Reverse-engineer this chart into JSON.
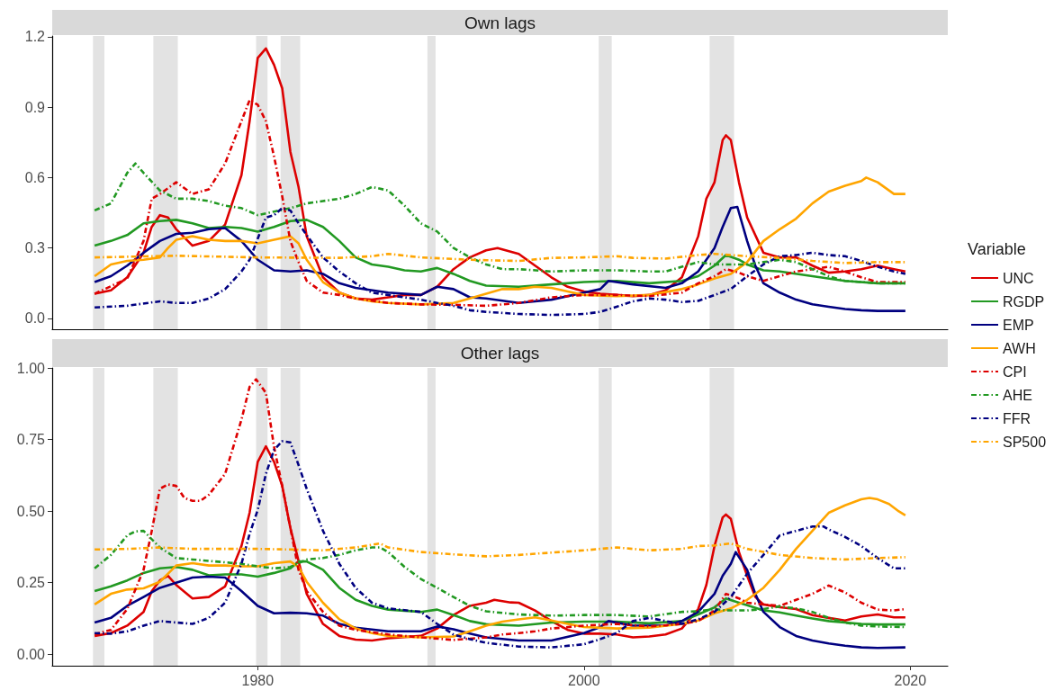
{
  "chart_data": [
    {
      "type": "line",
      "title": "Own lags",
      "legend": "right",
      "legend_title": "Variable",
      "marker": "none",
      "grid": false,
      "tick_labels": "y",
      "xlim": [
        1967.4,
        2022.3
      ],
      "xticks": [
        1980,
        2000,
        2020
      ],
      "ylim": [
        -0.046,
        1.203
      ],
      "yticks": [
        {
          "value": 0,
          "label": "0.0"
        },
        0.3,
        0.6,
        0.9,
        1.2
      ],
      "bands": [
        {
          "axis": "x",
          "from": 1969.9,
          "to": 1970.6,
          "color": "#e3e3e3"
        },
        {
          "axis": "x",
          "from": 1973.6,
          "to": 1975.1,
          "color": "#e3e3e3"
        },
        {
          "axis": "x",
          "from": 1979.9,
          "to": 1980.6,
          "color": "#e3e3e3"
        },
        {
          "axis": "x",
          "from": 1981.4,
          "to": 1982.6,
          "color": "#e3e3e3"
        },
        {
          "axis": "x",
          "from": 1990.4,
          "to": 1990.9,
          "color": "#e3e3e3"
        },
        {
          "axis": "x",
          "from": 2000.9,
          "to": 2001.7,
          "color": "#e3e3e3"
        },
        {
          "axis": "x",
          "from": 2007.7,
          "to": 2009.2,
          "color": "#e3e3e3"
        }
      ],
      "series": [
        {
          "name": "UNC",
          "color": "#dd0000",
          "line_style": "solid",
          "x": [
            1970,
            1971,
            1972,
            1973,
            1973.5,
            1974,
            1974.5,
            1975,
            1976,
            1977,
            1978,
            1979,
            1979.5,
            1980,
            1980.5,
            1981,
            1981.5,
            1982,
            1982.5,
            1983,
            1984,
            1985,
            1986,
            1987,
            1988,
            1989,
            1990,
            1991,
            1992,
            1993,
            1994,
            1994.7,
            1996,
            1997,
            1998,
            1999,
            2000,
            2001,
            2002,
            2003,
            2004,
            2005,
            2006,
            2007,
            2007.5,
            2008,
            2008.5,
            2008.7,
            2009,
            2009.5,
            2010,
            2011,
            2012,
            2013,
            2014,
            2015,
            2016,
            2017,
            2018,
            2019,
            2019.7
          ],
          "values": [
            0.105,
            0.12,
            0.175,
            0.28,
            0.39,
            0.44,
            0.43,
            0.38,
            0.31,
            0.33,
            0.4,
            0.61,
            0.84,
            1.11,
            1.15,
            1.08,
            0.98,
            0.71,
            0.56,
            0.35,
            0.175,
            0.11,
            0.085,
            0.08,
            0.09,
            0.1,
            0.1,
            0.135,
            0.21,
            0.26,
            0.29,
            0.3,
            0.275,
            0.225,
            0.175,
            0.135,
            0.115,
            0.105,
            0.1,
            0.095,
            0.1,
            0.12,
            0.175,
            0.35,
            0.51,
            0.58,
            0.76,
            0.78,
            0.76,
            0.58,
            0.43,
            0.28,
            0.26,
            0.26,
            0.225,
            0.195,
            0.2,
            0.21,
            0.225,
            0.21,
            0.2
          ]
        },
        {
          "name": "RGDP",
          "color": "#229922",
          "line_style": "solid",
          "x": [
            1970,
            1971,
            1972,
            1973,
            1974,
            1975,
            1976,
            1977,
            1978,
            1979,
            1980,
            1981,
            1982,
            1983,
            1984,
            1985,
            1986,
            1987,
            1988,
            1989,
            1990,
            1991,
            1992,
            1993,
            1994,
            1996,
            1998,
            2000,
            2002,
            2004,
            2006,
            2007,
            2008,
            2008.7,
            2009.5,
            2010,
            2011,
            2012,
            2014,
            2016,
            2018,
            2019.7
          ],
          "values": [
            0.31,
            0.33,
            0.355,
            0.405,
            0.415,
            0.42,
            0.405,
            0.385,
            0.39,
            0.385,
            0.37,
            0.39,
            0.415,
            0.42,
            0.39,
            0.33,
            0.26,
            0.23,
            0.22,
            0.205,
            0.2,
            0.215,
            0.19,
            0.16,
            0.14,
            0.135,
            0.145,
            0.155,
            0.16,
            0.15,
            0.16,
            0.18,
            0.225,
            0.27,
            0.25,
            0.23,
            0.205,
            0.2,
            0.18,
            0.16,
            0.15,
            0.15
          ]
        },
        {
          "name": "EMP",
          "color": "#000080",
          "line_style": "solid",
          "x": [
            1970,
            1971,
            1972,
            1973,
            1974,
            1975,
            1976,
            1977,
            1978,
            1979,
            1980,
            1981,
            1982,
            1983,
            1984,
            1985,
            1986,
            1988,
            1990,
            1991,
            1992,
            1993,
            1994,
            1996,
            1998,
            2000,
            2001,
            2001.5,
            2003,
            2005,
            2006,
            2007,
            2008,
            2008.5,
            2009,
            2009.4,
            2010,
            2010.5,
            2011,
            2012,
            2013,
            2014,
            2015,
            2016,
            2017,
            2018,
            2019.7
          ],
          "values": [
            0.155,
            0.18,
            0.225,
            0.28,
            0.33,
            0.36,
            0.365,
            0.38,
            0.385,
            0.33,
            0.25,
            0.205,
            0.2,
            0.205,
            0.19,
            0.15,
            0.13,
            0.11,
            0.1,
            0.135,
            0.125,
            0.09,
            0.085,
            0.066,
            0.08,
            0.11,
            0.125,
            0.16,
            0.145,
            0.13,
            0.15,
            0.2,
            0.3,
            0.39,
            0.47,
            0.475,
            0.33,
            0.225,
            0.15,
            0.11,
            0.08,
            0.06,
            0.05,
            0.04,
            0.035,
            0.032,
            0.032
          ]
        },
        {
          "name": "AWH",
          "color": "#ffa500",
          "line_style": "solid",
          "x": [
            1970,
            1971,
            1972,
            1973,
            1974,
            1974.5,
            1975,
            1976,
            1977,
            1978,
            1979,
            1980,
            1981,
            1982,
            1982.5,
            1983,
            1984,
            1985,
            1986,
            1987,
            1988,
            1990,
            1992,
            1993,
            1994,
            1995,
            1996,
            1997,
            1998,
            1999,
            2000,
            2002,
            2004,
            2006,
            2007,
            2008,
            2009,
            2010,
            2011,
            2012,
            2013,
            2014,
            2015,
            2016,
            2017,
            2017.3,
            2018,
            2019,
            2019.7
          ],
          "values": [
            0.18,
            0.23,
            0.245,
            0.25,
            0.26,
            0.3,
            0.335,
            0.35,
            0.335,
            0.33,
            0.33,
            0.32,
            0.335,
            0.35,
            0.32,
            0.25,
            0.155,
            0.11,
            0.085,
            0.073,
            0.066,
            0.06,
            0.066,
            0.085,
            0.105,
            0.125,
            0.125,
            0.135,
            0.13,
            0.115,
            0.1,
            0.095,
            0.1,
            0.125,
            0.145,
            0.17,
            0.19,
            0.24,
            0.33,
            0.38,
            0.425,
            0.49,
            0.54,
            0.565,
            0.585,
            0.6,
            0.58,
            0.53,
            0.53
          ]
        },
        {
          "name": "CPI",
          "color": "#dd0000",
          "line_style": "dashed",
          "x": [
            1970,
            1972,
            1973,
            1973.5,
            1974,
            1975,
            1976,
            1977,
            1978,
            1979,
            1979.5,
            1980,
            1980.5,
            1981,
            1981.5,
            1982,
            1982.5,
            1983,
            1984,
            1985,
            1986,
            1988,
            1990,
            1992,
            1994,
            1996,
            1998,
            2000,
            2002,
            2004,
            2006,
            2007,
            2008,
            2008.7,
            2009.5,
            2010,
            2011,
            2012,
            2013,
            2014,
            2015,
            2016,
            2017,
            2018,
            2019.7
          ],
          "values": [
            0.105,
            0.17,
            0.33,
            0.51,
            0.53,
            0.58,
            0.53,
            0.55,
            0.66,
            0.84,
            0.93,
            0.91,
            0.84,
            0.69,
            0.52,
            0.33,
            0.24,
            0.16,
            0.11,
            0.1,
            0.085,
            0.066,
            0.06,
            0.058,
            0.054,
            0.066,
            0.09,
            0.1,
            0.1,
            0.095,
            0.11,
            0.15,
            0.18,
            0.21,
            0.195,
            0.18,
            0.16,
            0.18,
            0.2,
            0.21,
            0.22,
            0.2,
            0.175,
            0.155,
            0.155
          ]
        },
        {
          "name": "AHE",
          "color": "#229922",
          "line_style": "dashed",
          "x": [
            1970,
            1971,
            1972,
            1972.5,
            1973,
            1974,
            1975,
            1976,
            1977,
            1978,
            1979,
            1979.5,
            1980,
            1981,
            1982,
            1983,
            1984,
            1985,
            1986,
            1987,
            1988,
            1989,
            1990,
            1991,
            1992,
            1993,
            1994,
            1995,
            1996,
            1998,
            2000,
            2002,
            2004,
            2005,
            2006,
            2007,
            2008,
            2009,
            2010,
            2011,
            2012,
            2013,
            2014,
            2015,
            2016,
            2017,
            2018,
            2019.7
          ],
          "values": [
            0.46,
            0.49,
            0.62,
            0.66,
            0.62,
            0.545,
            0.51,
            0.51,
            0.5,
            0.48,
            0.47,
            0.455,
            0.44,
            0.455,
            0.47,
            0.49,
            0.5,
            0.51,
            0.53,
            0.56,
            0.545,
            0.48,
            0.405,
            0.37,
            0.3,
            0.26,
            0.23,
            0.21,
            0.21,
            0.2,
            0.205,
            0.205,
            0.2,
            0.2,
            0.22,
            0.24,
            0.23,
            0.23,
            0.23,
            0.24,
            0.25,
            0.24,
            0.21,
            0.18,
            0.16,
            0.155,
            0.15,
            0.15
          ]
        },
        {
          "name": "FFR",
          "color": "#000080",
          "line_style": "dashed",
          "x": [
            1970,
            1972,
            1974,
            1975,
            1976,
            1977,
            1978,
            1979,
            1979.5,
            1980,
            1980.5,
            1981,
            1981.5,
            1982,
            1982.5,
            1983,
            1984,
            1985,
            1986,
            1987,
            1988,
            1990,
            1991,
            1992,
            1993,
            1994,
            1996,
            1998,
            2000,
            2001,
            2002,
            2003,
            2004,
            2005,
            2006,
            2007,
            2008,
            2009,
            2010,
            2011,
            2012,
            2013,
            2014,
            2015,
            2016,
            2017,
            2018,
            2019,
            2019.7
          ],
          "values": [
            0.047,
            0.054,
            0.073,
            0.066,
            0.066,
            0.085,
            0.125,
            0.2,
            0.25,
            0.34,
            0.43,
            0.44,
            0.47,
            0.46,
            0.405,
            0.355,
            0.26,
            0.2,
            0.15,
            0.11,
            0.1,
            0.08,
            0.066,
            0.054,
            0.035,
            0.028,
            0.019,
            0.015,
            0.019,
            0.028,
            0.05,
            0.073,
            0.085,
            0.08,
            0.07,
            0.075,
            0.1,
            0.125,
            0.18,
            0.23,
            0.265,
            0.27,
            0.28,
            0.27,
            0.265,
            0.245,
            0.22,
            0.2,
            0.19
          ]
        },
        {
          "name": "SP500",
          "color": "#ffa500",
          "line_style": "dashed",
          "x": [
            1970,
            1975,
            1980,
            1985,
            1987,
            1988,
            1990,
            1993,
            1994,
            1996,
            1998,
            2000,
            2002,
            2003,
            2005,
            2007,
            2008,
            2009,
            2010,
            2012,
            2014,
            2016,
            2018,
            2019.7
          ],
          "values": [
            0.26,
            0.267,
            0.26,
            0.258,
            0.265,
            0.275,
            0.26,
            0.25,
            0.248,
            0.245,
            0.258,
            0.26,
            0.265,
            0.258,
            0.255,
            0.27,
            0.275,
            0.27,
            0.265,
            0.258,
            0.245,
            0.236,
            0.24,
            0.24
          ]
        }
      ]
    },
    {
      "type": "line",
      "title": "Other lags",
      "legend": false,
      "marker": "none",
      "grid": false,
      "xlim": [
        1967.4,
        2022.3
      ],
      "xticks": [
        1980,
        2000,
        2020
      ],
      "ylim": [
        -0.04,
        1.0
      ],
      "yticks": [
        {
          "value": 0,
          "label": "0.00"
        },
        0.25,
        {
          "value": 0.5,
          "label": "0.50"
        },
        0.75,
        {
          "value": 1,
          "label": "1.00"
        }
      ],
      "bands": [
        {
          "axis": "x",
          "from": 1969.9,
          "to": 1970.6,
          "color": "#e3e3e3"
        },
        {
          "axis": "x",
          "from": 1973.6,
          "to": 1975.1,
          "color": "#e3e3e3"
        },
        {
          "axis": "x",
          "from": 1979.9,
          "to": 1980.6,
          "color": "#e3e3e3"
        },
        {
          "axis": "x",
          "from": 1981.4,
          "to": 1982.6,
          "color": "#e3e3e3"
        },
        {
          "axis": "x",
          "from": 1990.4,
          "to": 1990.9,
          "color": "#e3e3e3"
        },
        {
          "axis": "x",
          "from": 2000.9,
          "to": 2001.7,
          "color": "#e3e3e3"
        },
        {
          "axis": "x",
          "from": 2007.7,
          "to": 2009.2,
          "color": "#e3e3e3"
        }
      ],
      "series": [
        {
          "color": "#dd0000",
          "line_style": "solid",
          "x": [
            1970,
            1971,
            1972,
            1973,
            1973.5,
            1974,
            1974.5,
            1975,
            1976,
            1977,
            1978,
            1979,
            1979.5,
            1980,
            1980.5,
            1981,
            1981.5,
            1982,
            1982.5,
            1983,
            1984,
            1985,
            1986,
            1987,
            1988,
            1990,
            1991,
            1992,
            1993,
            1994,
            1994.5,
            1995.5,
            1996,
            1997,
            1998,
            1999,
            2000,
            2001,
            2002,
            2003,
            2004,
            2005,
            2006,
            2007,
            2007.5,
            2008,
            2008.5,
            2008.7,
            2009,
            2009.5,
            2010,
            2010.5,
            2011,
            2012,
            2013,
            2014,
            2015,
            2016,
            2017,
            2018,
            2019,
            2019.7
          ],
          "values": [
            0.064,
            0.074,
            0.1,
            0.148,
            0.22,
            0.258,
            0.274,
            0.242,
            0.195,
            0.2,
            0.237,
            0.378,
            0.494,
            0.672,
            0.726,
            0.672,
            0.588,
            0.441,
            0.326,
            0.211,
            0.106,
            0.064,
            0.051,
            0.048,
            0.056,
            0.064,
            0.09,
            0.137,
            0.169,
            0.18,
            0.19,
            0.181,
            0.18,
            0.153,
            0.116,
            0.085,
            0.072,
            0.072,
            0.069,
            0.059,
            0.062,
            0.069,
            0.09,
            0.158,
            0.242,
            0.378,
            0.478,
            0.488,
            0.473,
            0.357,
            0.274,
            0.2,
            0.174,
            0.164,
            0.158,
            0.137,
            0.127,
            0.118,
            0.132,
            0.139,
            0.129,
            0.129
          ]
        },
        {
          "color": "#229922",
          "line_style": "solid",
          "x": [
            1970,
            1971,
            1972,
            1973,
            1974,
            1975,
            1976,
            1977,
            1978,
            1979,
            1980,
            1981,
            1982,
            1982.5,
            1983,
            1984,
            1985,
            1986,
            1987,
            1988,
            1990,
            1991,
            1992,
            1993,
            1994,
            1996,
            1998,
            2000,
            2002,
            2004,
            2006,
            2007,
            2008,
            2008.7,
            2009.5,
            2010,
            2011,
            2012,
            2013,
            2014,
            2015,
            2016,
            2017,
            2018,
            2019.7
          ],
          "values": [
            0.221,
            0.237,
            0.258,
            0.284,
            0.3,
            0.305,
            0.295,
            0.276,
            0.279,
            0.279,
            0.271,
            0.284,
            0.3,
            0.324,
            0.324,
            0.295,
            0.232,
            0.19,
            0.169,
            0.156,
            0.148,
            0.156,
            0.137,
            0.116,
            0.105,
            0.1,
            0.111,
            0.114,
            0.114,
            0.108,
            0.116,
            0.139,
            0.164,
            0.195,
            0.18,
            0.171,
            0.153,
            0.146,
            0.135,
            0.125,
            0.116,
            0.111,
            0.106,
            0.104,
            0.104
          ]
        },
        {
          "color": "#000080",
          "line_style": "solid",
          "x": [
            1970,
            1971,
            1972,
            1973,
            1974,
            1975,
            1976,
            1977,
            1978,
            1979,
            1980,
            1981,
            1982,
            1983,
            1984,
            1985,
            1986,
            1988,
            1990,
            1991,
            1992,
            1993,
            1994,
            1996,
            1998,
            2000,
            2001,
            2001.5,
            2003,
            2005,
            2006,
            2007,
            2008,
            2008.5,
            2009,
            2009.3,
            2010,
            2010.5,
            2011,
            2012,
            2013,
            2014,
            2015,
            2016,
            2017,
            2018,
            2019.7
          ],
          "values": [
            0.111,
            0.127,
            0.169,
            0.2,
            0.232,
            0.25,
            0.268,
            0.271,
            0.268,
            0.221,
            0.169,
            0.143,
            0.145,
            0.143,
            0.135,
            0.106,
            0.093,
            0.08,
            0.08,
            0.097,
            0.087,
            0.072,
            0.059,
            0.048,
            0.048,
            0.074,
            0.095,
            0.116,
            0.1,
            0.1,
            0.116,
            0.148,
            0.211,
            0.274,
            0.316,
            0.357,
            0.295,
            0.211,
            0.148,
            0.095,
            0.064,
            0.048,
            0.038,
            0.03,
            0.024,
            0.022,
            0.024
          ]
        },
        {
          "color": "#ffa500",
          "line_style": "solid",
          "x": [
            1970,
            1971,
            1972,
            1973,
            1974,
            1975,
            1976,
            1977,
            1978,
            1979,
            1980,
            1981,
            1982,
            1982.5,
            1983,
            1984,
            1985,
            1986,
            1987,
            1988,
            1990,
            1992,
            1993,
            1994,
            1995,
            1996,
            1997,
            1998,
            1999,
            2000,
            2002,
            2004,
            2006,
            2007,
            2008,
            2009,
            2010,
            2011,
            2012,
            2013,
            2014,
            2015,
            2016,
            2017,
            2017.5,
            2018,
            2018.7,
            2019.3,
            2019.7
          ],
          "values": [
            0.174,
            0.211,
            0.226,
            0.23,
            0.253,
            0.31,
            0.318,
            0.31,
            0.31,
            0.307,
            0.307,
            0.318,
            0.324,
            0.305,
            0.253,
            0.18,
            0.122,
            0.09,
            0.074,
            0.064,
            0.059,
            0.062,
            0.08,
            0.1,
            0.114,
            0.122,
            0.129,
            0.118,
            0.106,
            0.095,
            0.09,
            0.093,
            0.106,
            0.118,
            0.143,
            0.16,
            0.19,
            0.232,
            0.295,
            0.368,
            0.431,
            0.494,
            0.52,
            0.541,
            0.546,
            0.541,
            0.525,
            0.499,
            0.485
          ]
        },
        {
          "color": "#dd0000",
          "line_style": "dashed",
          "x": [
            1970,
            1971,
            1972,
            1973,
            1973.5,
            1974,
            1974.5,
            1975,
            1975.5,
            1976,
            1976.5,
            1977,
            1978,
            1979,
            1979.5,
            1979.9,
            1980.5,
            1981,
            1981.5,
            1982,
            1982.5,
            1983,
            1984,
            1985,
            1986,
            1988,
            1990,
            1992,
            1994,
            1995,
            1996,
            1997,
            1998,
            2000,
            2002,
            2004,
            2006,
            2007,
            2008,
            2008.7,
            2009.5,
            2010,
            2011,
            2012,
            2013,
            2014,
            2015,
            2016,
            2017,
            2018,
            2019,
            2019.7
          ],
          "values": [
            0.07,
            0.085,
            0.158,
            0.295,
            0.43,
            0.578,
            0.593,
            0.588,
            0.546,
            0.536,
            0.536,
            0.557,
            0.63,
            0.819,
            0.934,
            0.96,
            0.913,
            0.724,
            0.588,
            0.441,
            0.295,
            0.221,
            0.148,
            0.1,
            0.085,
            0.069,
            0.059,
            0.05,
            0.059,
            0.069,
            0.074,
            0.08,
            0.09,
            0.1,
            0.106,
            0.097,
            0.106,
            0.116,
            0.153,
            0.211,
            0.195,
            0.18,
            0.174,
            0.169,
            0.19,
            0.211,
            0.24,
            0.216,
            0.18,
            0.156,
            0.153,
            0.158
          ]
        },
        {
          "color": "#229922",
          "line_style": "dashed",
          "x": [
            1970,
            1971,
            1972,
            1972.5,
            1973,
            1974,
            1975,
            1976,
            1977,
            1978,
            1979,
            1980,
            1981,
            1982,
            1983,
            1984,
            1985,
            1986,
            1987,
            1987.5,
            1988,
            1989,
            1990,
            1991,
            1992,
            1993,
            1994,
            1996,
            1998,
            2000,
            2002,
            2004,
            2006,
            2007,
            2008,
            2008.7,
            2010,
            2011,
            2012,
            2013,
            2014,
            2015,
            2016,
            2017,
            2018,
            2019.7
          ],
          "values": [
            0.3,
            0.347,
            0.415,
            0.429,
            0.431,
            0.373,
            0.336,
            0.331,
            0.326,
            0.321,
            0.316,
            0.307,
            0.3,
            0.305,
            0.331,
            0.336,
            0.347,
            0.363,
            0.373,
            0.373,
            0.357,
            0.305,
            0.263,
            0.232,
            0.2,
            0.169,
            0.15,
            0.139,
            0.135,
            0.137,
            0.137,
            0.132,
            0.148,
            0.15,
            0.158,
            0.153,
            0.153,
            0.158,
            0.167,
            0.16,
            0.148,
            0.127,
            0.111,
            0.1,
            0.097,
            0.095
          ]
        },
        {
          "color": "#000080",
          "line_style": "dashed",
          "x": [
            1970,
            1971,
            1972,
            1973,
            1974,
            1975,
            1976,
            1977,
            1978,
            1979,
            1979.5,
            1980,
            1980.5,
            1981,
            1981.5,
            1982,
            1982.5,
            1983,
            1984,
            1985,
            1986,
            1987,
            1988,
            1990,
            1991,
            1992,
            1993,
            1994,
            1996,
            1998,
            2000,
            2001,
            2002,
            2003,
            2004,
            2005,
            2006,
            2007,
            2008,
            2009,
            2010,
            2011,
            2012,
            2013,
            2014,
            2014.7,
            2015,
            2016,
            2017,
            2018,
            2019,
            2019.7
          ],
          "values": [
            0.074,
            0.072,
            0.08,
            0.1,
            0.116,
            0.111,
            0.106,
            0.127,
            0.18,
            0.316,
            0.42,
            0.504,
            0.63,
            0.714,
            0.744,
            0.74,
            0.661,
            0.578,
            0.431,
            0.316,
            0.232,
            0.18,
            0.16,
            0.148,
            0.106,
            0.069,
            0.053,
            0.04,
            0.027,
            0.024,
            0.035,
            0.053,
            0.074,
            0.116,
            0.127,
            0.116,
            0.106,
            0.122,
            0.148,
            0.2,
            0.281,
            0.347,
            0.415,
            0.431,
            0.446,
            0.446,
            0.436,
            0.41,
            0.378,
            0.336,
            0.3,
            0.3
          ]
        },
        {
          "color": "#ffa500",
          "line_style": "dashed",
          "x": [
            1970,
            1972,
            1974,
            1976,
            1978,
            1980,
            1982,
            1984,
            1986,
            1987.5,
            1988,
            1990,
            1992,
            1994,
            1996,
            1998,
            2000,
            2002,
            2004,
            2006,
            2007,
            2008,
            2009,
            2010,
            2012,
            2014,
            2016,
            2018,
            2019.7
          ],
          "values": [
            0.366,
            0.368,
            0.373,
            0.368,
            0.368,
            0.368,
            0.366,
            0.363,
            0.373,
            0.387,
            0.373,
            0.357,
            0.349,
            0.342,
            0.347,
            0.355,
            0.363,
            0.373,
            0.363,
            0.368,
            0.378,
            0.38,
            0.387,
            0.368,
            0.347,
            0.336,
            0.331,
            0.336,
            0.339
          ]
        }
      ]
    }
  ]
}
